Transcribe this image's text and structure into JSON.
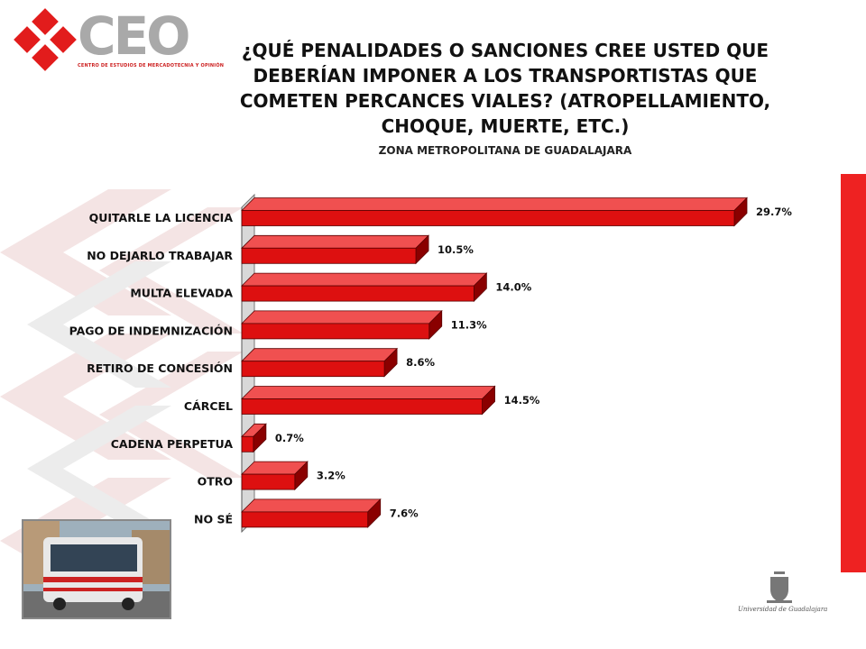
{
  "logo": {
    "text": "CEO",
    "subtitle": "CENTRO DE ESTUDIOS DE MERCADOTECNIA Y OPINIÓN"
  },
  "title": "¿QUÉ PENALIDADES O SANCIONES CREE USTED QUE DEBERÍAN IMPONER A LOS TRANSPORTISTAS QUE COMETEN PERCANCES VIALES? (ATROPELLAMIENTO, CHOQUE, MUERTE, ETC.)",
  "subtitle": "ZONA METROPOLITANA DE GUADALAJARA",
  "footer": {
    "university": "Universidad de Guadalajara"
  },
  "colors": {
    "bar_front": "#dd1010",
    "bar_top": "#f05050",
    "bar_side": "#8a0000",
    "strip": "#ee2222"
  },
  "chart_data": {
    "type": "bar",
    "orientation": "horizontal",
    "categories": [
      "QUITARLE LA LICENCIA",
      "NO DEJARLO TRABAJAR",
      "MULTA ELEVADA",
      "PAGO DE INDEMNIZACIÓN",
      "RETIRO DE CONCESIÓN",
      "CÁRCEL",
      "CADENA PERPETUA",
      "OTRO",
      "NO SÉ"
    ],
    "values": [
      29.7,
      10.5,
      14.0,
      11.3,
      8.6,
      14.5,
      0.7,
      3.2,
      7.6
    ],
    "value_labels": [
      "29.7%",
      "10.5%",
      "14.0%",
      "11.3%",
      "8.6%",
      "14.5%",
      "0.7%",
      "3.2%",
      "7.6%"
    ],
    "xlim": [
      0,
      29.7
    ],
    "grid": false,
    "legend": "none"
  }
}
